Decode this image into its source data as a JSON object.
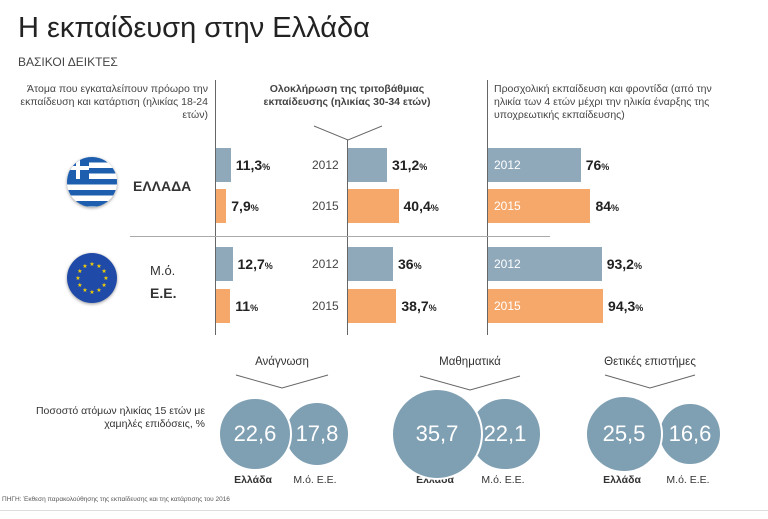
{
  "title": "Η εκπαίδευση στην Ελλάδα",
  "subtitle": "ΒΑΣΙΚΟΙ ΔΕΙΚΤΕΣ",
  "colors": {
    "year2012": "#8fa9bb",
    "year2015": "#f5a86a",
    "bubble": "#7f9fb3"
  },
  "chart_data": [
    {
      "type": "bar",
      "title": "Άτομα που εγκαταλείπουν πρόωρο την εκπαίδευση και κατάρτιση (ηλικίας 18-24 ετών)",
      "categories": [
        "ΕΛΛΑΔΑ",
        "Μ.ό. Ε.Ε."
      ],
      "series": [
        {
          "name": "2012",
          "values": [
            11.3,
            12.7
          ],
          "labels": [
            "11,3%",
            "12,7%"
          ]
        },
        {
          "name": "2015",
          "values": [
            7.9,
            11
          ],
          "labels": [
            "7,9%",
            "11%"
          ]
        }
      ]
    },
    {
      "type": "bar",
      "title": "Ολοκλήρωση της τριτοβάθμιας εκπαίδευσης (ηλικίας 30-34 ετών)",
      "categories": [
        "ΕΛΛΑΔΑ",
        "Μ.ό. Ε.Ε."
      ],
      "series": [
        {
          "name": "2012",
          "values": [
            31.2,
            36
          ],
          "labels": [
            "31,2%",
            "36%"
          ]
        },
        {
          "name": "2015",
          "values": [
            40.4,
            38.7
          ],
          "labels": [
            "40,4%",
            "38,7%"
          ]
        }
      ]
    },
    {
      "type": "bar",
      "title": "Προσχολική εκπαίδευση και φροντίδα (από την ηλικία των 4 ετών μέχρι την ηλικία έναρξης της υποχρεωτικής εκπαίδευσης)",
      "categories": [
        "ΕΛΛΑΔΑ",
        "Μ.ό. Ε.Ε."
      ],
      "series": [
        {
          "name": "2012",
          "values": [
            76,
            93.2
          ],
          "labels": [
            "76%",
            "93,2%"
          ]
        },
        {
          "name": "2015",
          "values": [
            84,
            94.3
          ],
          "labels": [
            "84%",
            "94,3%"
          ]
        }
      ]
    },
    {
      "type": "bubble",
      "ylabel": "Ποσοστό ατόμων ηλικίας 15 ετών με χαμηλές επιδόσεις, %",
      "groups": [
        {
          "name": "Ανάγνωση",
          "items": [
            {
              "label": "Ελλάδα",
              "value": 22.6,
              "text": "22,6"
            },
            {
              "label": "Μ.ό. Ε.Ε.",
              "value": 17.8,
              "text": "17,8"
            }
          ]
        },
        {
          "name": "Μαθηματικά",
          "items": [
            {
              "label": "Ελλάδα",
              "value": 35.7,
              "text": "35,7"
            },
            {
              "label": "Μ.ό. Ε.Ε.",
              "value": 22.1,
              "text": "22,1"
            }
          ]
        },
        {
          "name": "Θετικές επιστήμες",
          "items": [
            {
              "label": "Ελλάδα",
              "value": 25.5,
              "text": "25,5"
            },
            {
              "label": "Μ.ό. Ε.Ε.",
              "value": 16.6,
              "text": "16,6"
            }
          ]
        }
      ]
    }
  ],
  "rows": {
    "greece": "ΕΛΛΑΔΑ",
    "eu_line1": "Μ.ό.",
    "eu_line2": "Ε.Ε."
  },
  "years": [
    "2012",
    "2015"
  ],
  "source": "ΠΗΓΗ: Έκθεση παρακολούθησης της εκπαίδευσης και της κατάρτισης του 2016"
}
